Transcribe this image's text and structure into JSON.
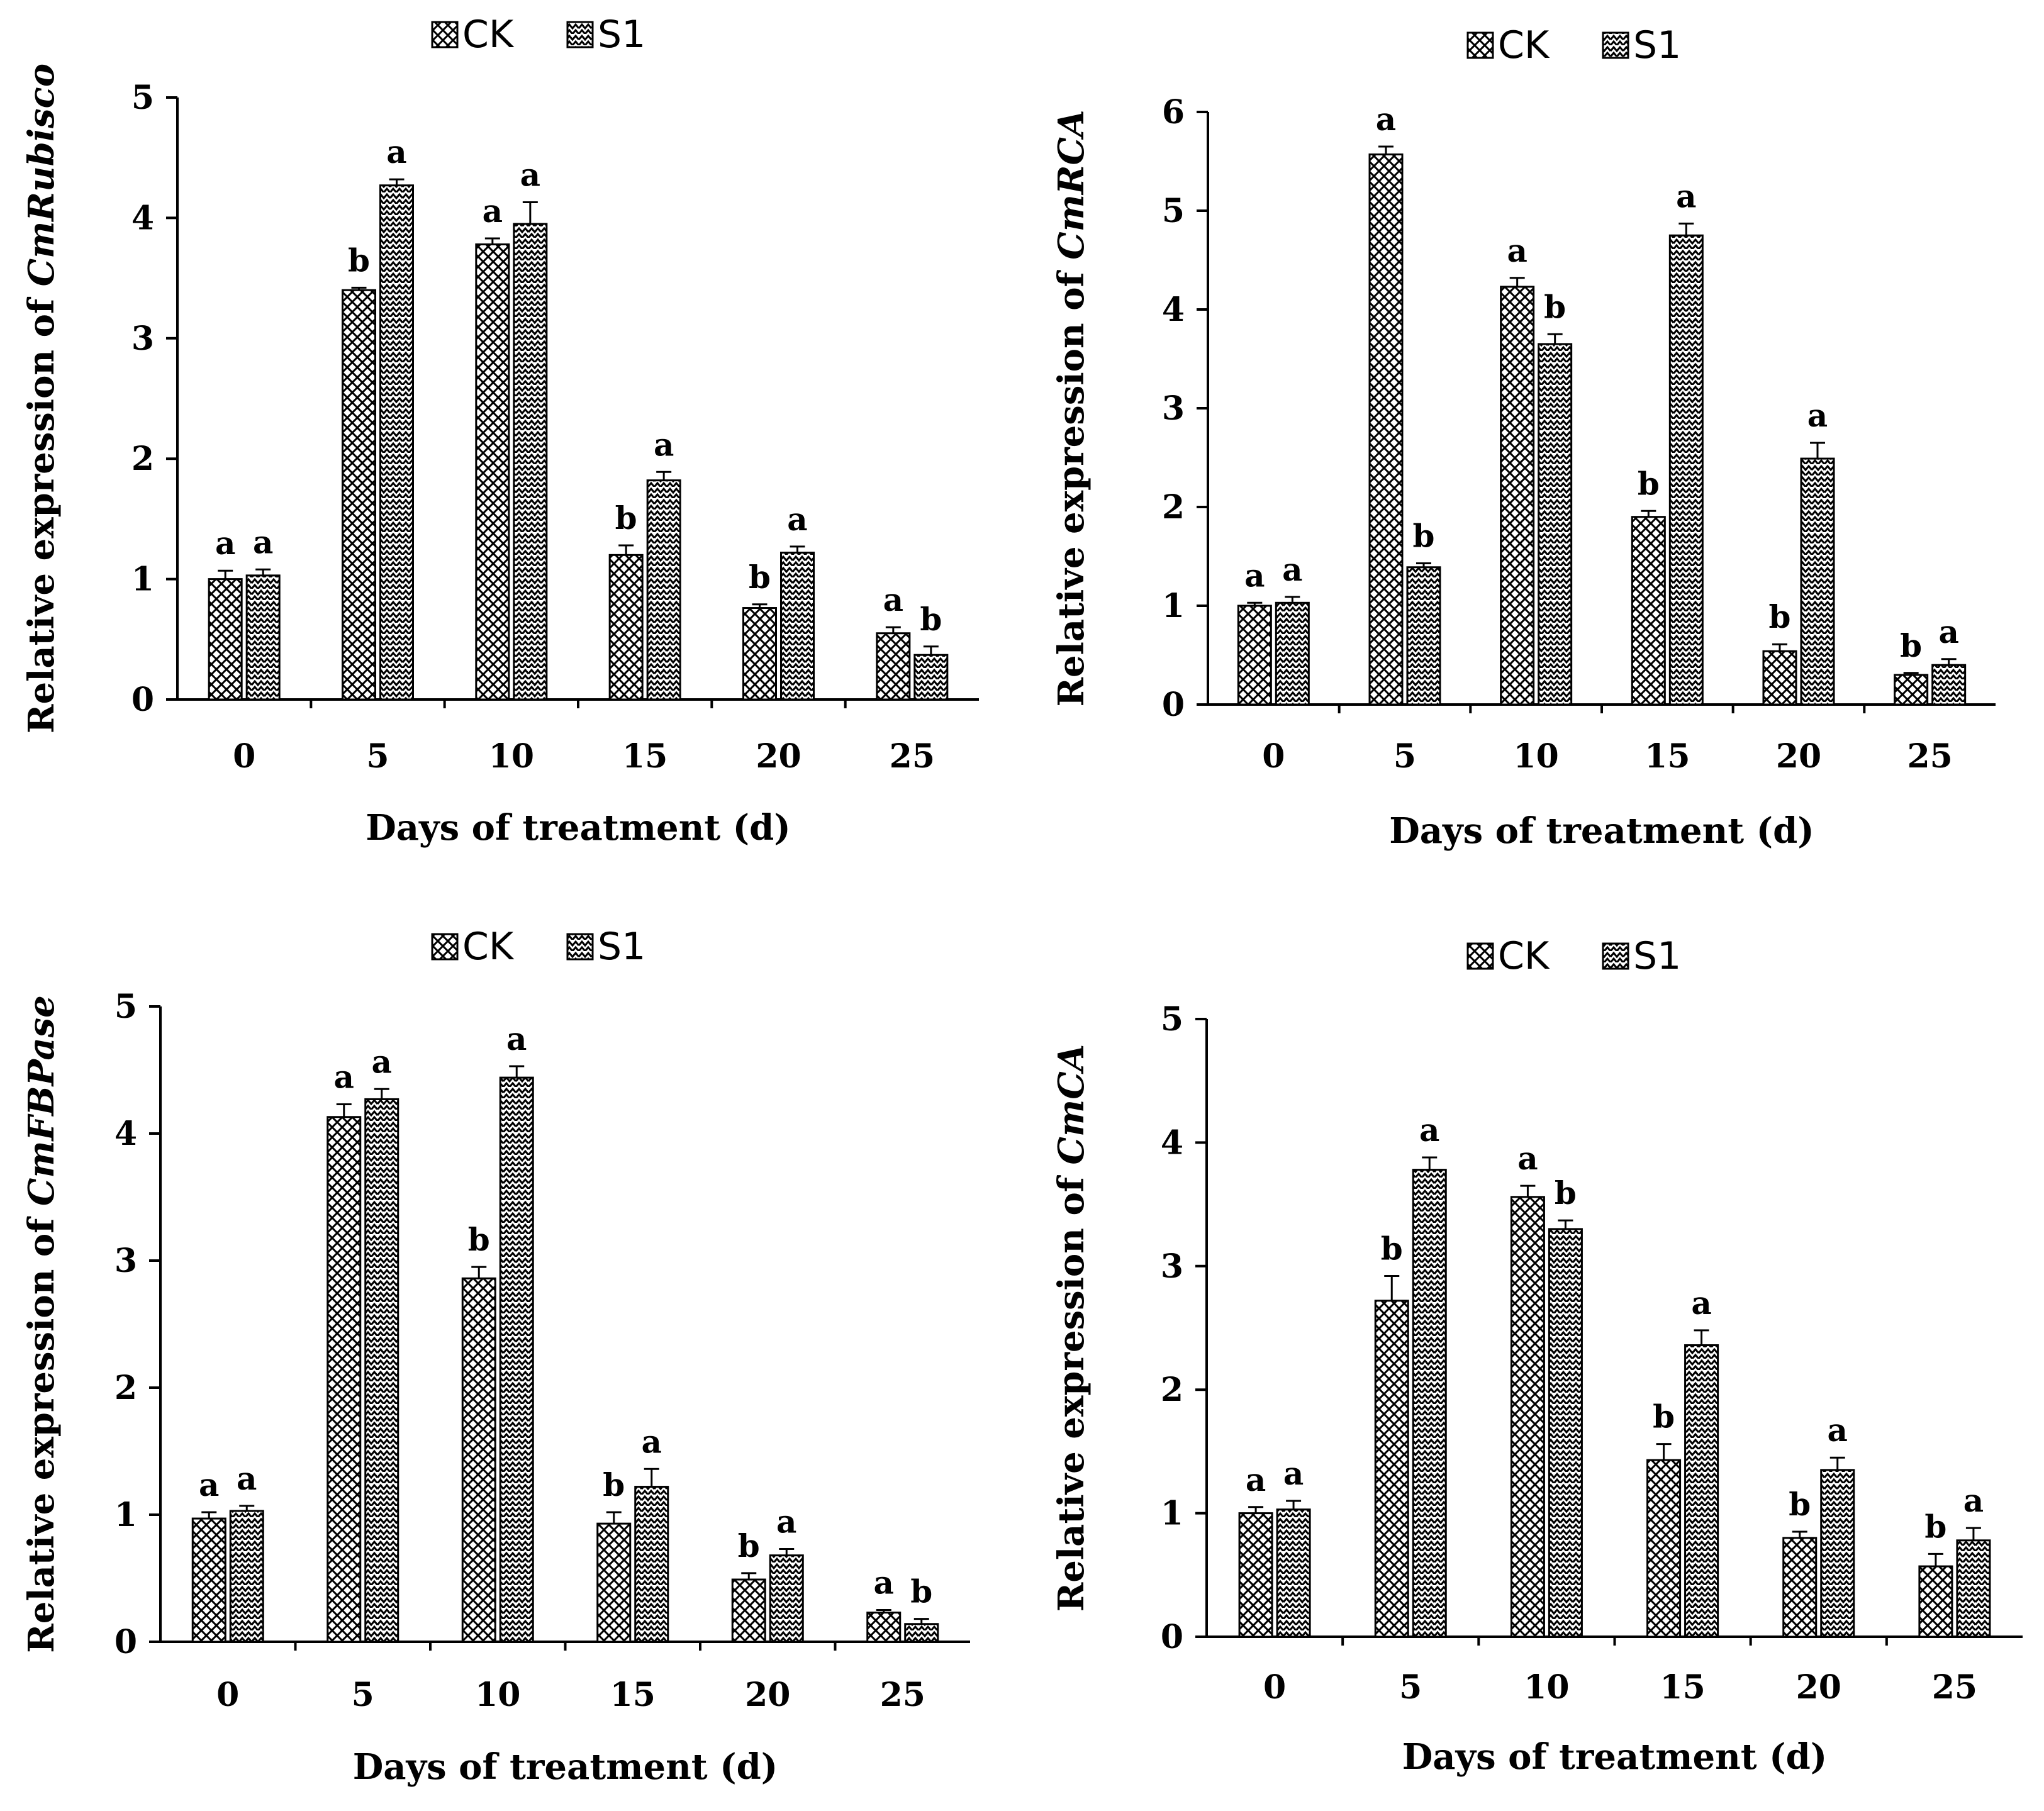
{
  "legend": {
    "ck_label": "CK",
    "s1_label": "S1"
  },
  "xlabel": "Days of treatment (d)",
  "ylabel_prefix": "Relative expression of ",
  "colors": {
    "bar_fill": "#ffffff",
    "pattern_stroke": "#000000",
    "axis": "#000000"
  },
  "chart_data": [
    {
      "type": "bar",
      "gene": "CmRubisco",
      "categories": [
        "0",
        "5",
        "10",
        "15",
        "20",
        "25"
      ],
      "ylim": [
        0,
        5
      ],
      "yticks": [
        "0",
        "1",
        "2",
        "3",
        "4",
        "5"
      ],
      "series": [
        {
          "name": "CK",
          "values": [
            1.0,
            3.4,
            3.78,
            1.2,
            0.76,
            0.55
          ],
          "errors": [
            0.07,
            0.02,
            0.05,
            0.08,
            0.03,
            0.05
          ],
          "letters": [
            "a",
            "b",
            "a",
            "b",
            "b",
            "a"
          ]
        },
        {
          "name": "S1",
          "values": [
            1.03,
            4.27,
            3.95,
            1.82,
            1.22,
            0.37
          ],
          "errors": [
            0.05,
            0.05,
            0.18,
            0.07,
            0.05,
            0.07
          ],
          "letters": [
            "a",
            "a",
            "a",
            "a",
            "a",
            "b"
          ]
        }
      ]
    },
    {
      "type": "bar",
      "gene": "CmRCA",
      "categories": [
        "0",
        "5",
        "10",
        "15",
        "20",
        "25"
      ],
      "ylim": [
        0,
        6
      ],
      "yticks": [
        "0",
        "1",
        "2",
        "3",
        "4",
        "5",
        "6"
      ],
      "series": [
        {
          "name": "CK",
          "values": [
            1.0,
            5.57,
            4.23,
            1.9,
            0.54,
            0.3
          ],
          "errors": [
            0.03,
            0.08,
            0.09,
            0.06,
            0.07,
            0.02
          ],
          "letters": [
            "a",
            "a",
            "a",
            "b",
            "b",
            "b"
          ]
        },
        {
          "name": "S1",
          "values": [
            1.03,
            1.39,
            3.65,
            4.75,
            2.49,
            0.4
          ],
          "errors": [
            0.06,
            0.04,
            0.1,
            0.12,
            0.16,
            0.06
          ],
          "letters": [
            "a",
            "b",
            "b",
            "a",
            "a",
            "a"
          ]
        }
      ]
    },
    {
      "type": "bar",
      "gene": "CmFBPase",
      "categories": [
        "0",
        "5",
        "10",
        "15",
        "20",
        "25"
      ],
      "ylim": [
        0,
        5
      ],
      "yticks": [
        "0",
        "1",
        "2",
        "3",
        "4",
        "5"
      ],
      "series": [
        {
          "name": "CK",
          "values": [
            0.97,
            4.13,
            2.86,
            0.93,
            0.49,
            0.23
          ],
          "errors": [
            0.05,
            0.1,
            0.09,
            0.09,
            0.05,
            0.02
          ],
          "letters": [
            "a",
            "a",
            "b",
            "b",
            "b",
            "a"
          ]
        },
        {
          "name": "S1",
          "values": [
            1.03,
            4.27,
            4.44,
            1.22,
            0.68,
            0.14
          ],
          "errors": [
            0.04,
            0.08,
            0.09,
            0.14,
            0.05,
            0.04
          ],
          "letters": [
            "a",
            "a",
            "a",
            "a",
            "a",
            "b"
          ]
        }
      ]
    },
    {
      "type": "bar",
      "gene": "CmCA",
      "categories": [
        "0",
        "5",
        "10",
        "15",
        "20",
        "25"
      ],
      "ylim": [
        0,
        5
      ],
      "yticks": [
        "0",
        "1",
        "2",
        "3",
        "4",
        "5"
      ],
      "series": [
        {
          "name": "CK",
          "values": [
            1.0,
            2.72,
            3.56,
            1.43,
            0.8,
            0.57
          ],
          "errors": [
            0.05,
            0.2,
            0.09,
            0.13,
            0.05,
            0.1
          ],
          "letters": [
            "a",
            "b",
            "a",
            "b",
            "b",
            "b"
          ]
        },
        {
          "name": "S1",
          "values": [
            1.03,
            3.78,
            3.3,
            2.36,
            1.35,
            0.78
          ],
          "errors": [
            0.07,
            0.1,
            0.07,
            0.12,
            0.1,
            0.1
          ],
          "letters": [
            "a",
            "a",
            "b",
            "a",
            "a",
            "a"
          ]
        }
      ]
    }
  ]
}
